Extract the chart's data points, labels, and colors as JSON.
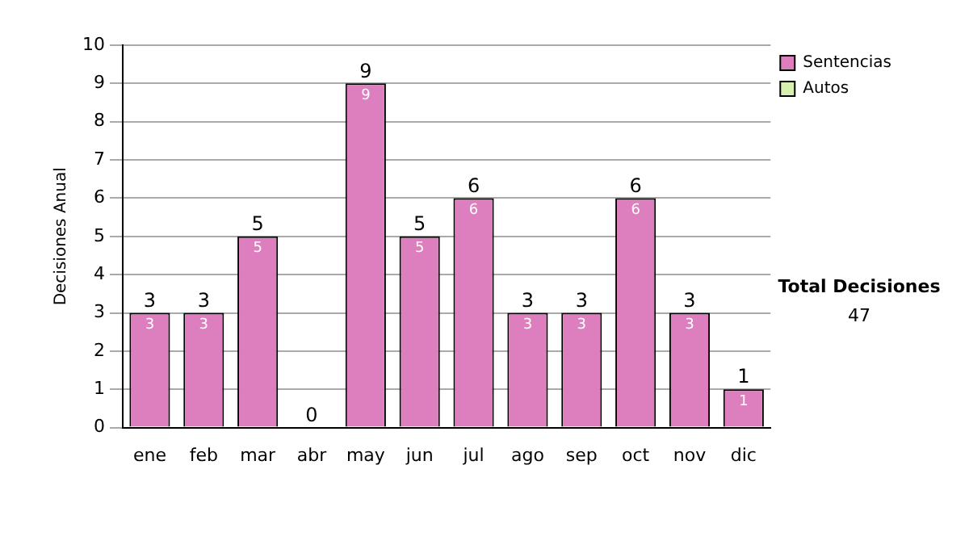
{
  "chart_data": {
    "type": "bar",
    "stacked": true,
    "ylabel": "Decisiones Anual",
    "categories": [
      "ene",
      "feb",
      "mar",
      "abr",
      "may",
      "jun",
      "jul",
      "ago",
      "sep",
      "oct",
      "nov",
      "dic"
    ],
    "series": [
      {
        "name": "Sentencias",
        "color": "#dd7fbf",
        "values": [
          3,
          3,
          5,
          0,
          9,
          5,
          6,
          3,
          3,
          6,
          3,
          1
        ],
        "value_labels": [
          "3",
          "3",
          "5",
          null,
          "9",
          "5",
          "6",
          "3",
          "3",
          "6",
          "3",
          "1"
        ]
      },
      {
        "name": "Autos",
        "color": "#d9efb0",
        "values": [
          0,
          0,
          0,
          0,
          0,
          0,
          0,
          0,
          0,
          0,
          0,
          0
        ]
      }
    ],
    "totals": [
      "3",
      "3",
      "5",
      "0",
      "9",
      "5",
      "6",
      "3",
      "3",
      "6",
      "3",
      "1"
    ],
    "ylim": [
      0,
      10
    ],
    "yticks": [
      0,
      1,
      2,
      3,
      4,
      5,
      6,
      7,
      8,
      9,
      10
    ],
    "grid": "y",
    "legend": "right",
    "annotations": [
      "Total Decisiones",
      "47"
    ]
  }
}
